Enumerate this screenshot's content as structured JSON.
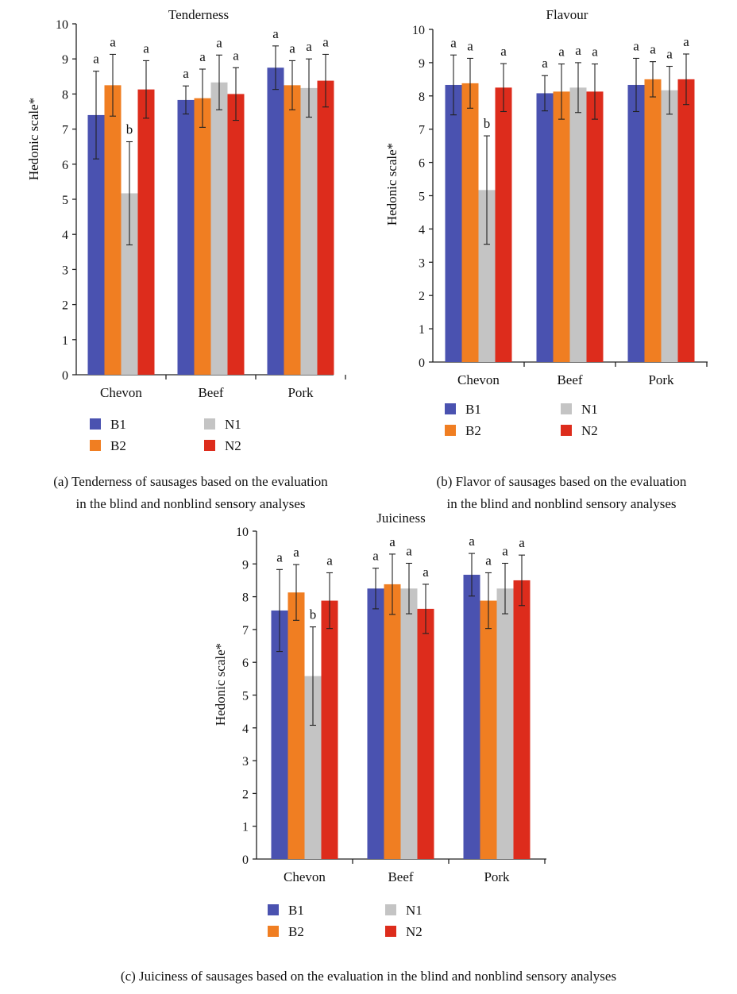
{
  "charts": [
    {
      "id": "a",
      "chart_data": {
        "type": "bar",
        "title": "Tenderness",
        "ylabel": "Hedonic scale*",
        "xlabel": "",
        "ylim": [
          0,
          10
        ],
        "yticks": [
          0,
          1,
          2,
          3,
          4,
          5,
          6,
          7,
          8,
          9,
          10
        ],
        "categories": [
          "Chevon",
          "Beef",
          "Pork"
        ],
        "series": [
          {
            "name": "B1",
            "color": "#4a52b0",
            "values": [
              7.4,
              7.83,
              8.75
            ],
            "errors": [
              1.25,
              0.4,
              0.62
            ],
            "labels": [
              "a",
              "a",
              "a"
            ]
          },
          {
            "name": "B2",
            "color": "#f07e22",
            "values": [
              8.25,
              7.88,
              8.25
            ],
            "errors": [
              0.88,
              0.83,
              0.7
            ],
            "labels": [
              "a",
              "a",
              "a"
            ]
          },
          {
            "name": "N1",
            "color": "#c4c4c4",
            "values": [
              5.17,
              8.33,
              8.17
            ],
            "errors": [
              1.47,
              0.78,
              0.83
            ],
            "labels": [
              "b",
              "a",
              "a"
            ]
          },
          {
            "name": "N2",
            "color": "#dd2c1c",
            "values": [
              8.13,
              8.0,
              8.38
            ],
            "errors": [
              0.82,
              0.75,
              0.75
            ],
            "labels": [
              "a",
              "a",
              "a"
            ]
          }
        ],
        "legend_position": "bottom"
      },
      "caption_lines": [
        "(a) Tenderness of sausages based on the evaluation",
        "in the blind and nonblind sensory analyses"
      ]
    },
    {
      "id": "b",
      "chart_data": {
        "type": "bar",
        "title": "Flavour",
        "ylabel": "Hedonic scale*",
        "xlabel": "",
        "ylim": [
          0,
          10
        ],
        "yticks": [
          0,
          1,
          2,
          3,
          4,
          5,
          6,
          7,
          8,
          9,
          10
        ],
        "categories": [
          "Chevon",
          "Beef",
          "Pork"
        ],
        "series": [
          {
            "name": "B1",
            "color": "#4a52b0",
            "values": [
              8.33,
              8.08,
              8.33
            ],
            "errors": [
              0.9,
              0.53,
              0.8
            ],
            "labels": [
              "a",
              "a",
              "a"
            ]
          },
          {
            "name": "B2",
            "color": "#f07e22",
            "values": [
              8.38,
              8.13,
              8.5
            ],
            "errors": [
              0.75,
              0.83,
              0.53
            ],
            "labels": [
              "a",
              "a",
              "a"
            ]
          },
          {
            "name": "N1",
            "color": "#c4c4c4",
            "values": [
              5.17,
              8.25,
              8.17
            ],
            "errors": [
              1.63,
              0.75,
              0.72
            ],
            "labels": [
              "b",
              "a",
              "a"
            ]
          },
          {
            "name": "N2",
            "color": "#dd2c1c",
            "values": [
              8.25,
              8.13,
              8.5
            ],
            "errors": [
              0.72,
              0.83,
              0.76
            ],
            "labels": [
              "a",
              "a",
              "a"
            ]
          }
        ],
        "legend_position": "bottom"
      },
      "caption_lines": [
        "(b) Flavor of sausages based on the evaluation",
        "in the blind and nonblind sensory analyses"
      ]
    },
    {
      "id": "c",
      "chart_data": {
        "type": "bar",
        "title": "Juiciness",
        "ylabel": "Hedonic scale*",
        "xlabel": "",
        "ylim": [
          0,
          10
        ],
        "yticks": [
          0,
          1,
          2,
          3,
          4,
          5,
          6,
          7,
          8,
          9,
          10
        ],
        "categories": [
          "Chevon",
          "Beef",
          "Pork"
        ],
        "series": [
          {
            "name": "B1",
            "color": "#4a52b0",
            "values": [
              7.58,
              8.25,
              8.67
            ],
            "errors": [
              1.25,
              0.62,
              0.65
            ],
            "labels": [
              "a",
              "a",
              "a"
            ]
          },
          {
            "name": "B2",
            "color": "#f07e22",
            "values": [
              8.13,
              8.38,
              7.88
            ],
            "errors": [
              0.85,
              0.92,
              0.85
            ],
            "labels": [
              "a",
              "a",
              "a"
            ]
          },
          {
            "name": "N1",
            "color": "#c4c4c4",
            "values": [
              5.58,
              8.25,
              8.25
            ],
            "errors": [
              1.5,
              0.77,
              0.77
            ],
            "labels": [
              "b",
              "a",
              "a"
            ]
          },
          {
            "name": "N2",
            "color": "#dd2c1c",
            "values": [
              7.88,
              7.63,
              8.5
            ],
            "errors": [
              0.85,
              0.75,
              0.77
            ],
            "labels": [
              "a",
              "a",
              "a"
            ]
          }
        ],
        "legend_position": "bottom"
      },
      "caption_lines": [
        "(c) Juiciness of sausages based on the evaluation in the blind and nonblind sensory analyses"
      ]
    }
  ]
}
